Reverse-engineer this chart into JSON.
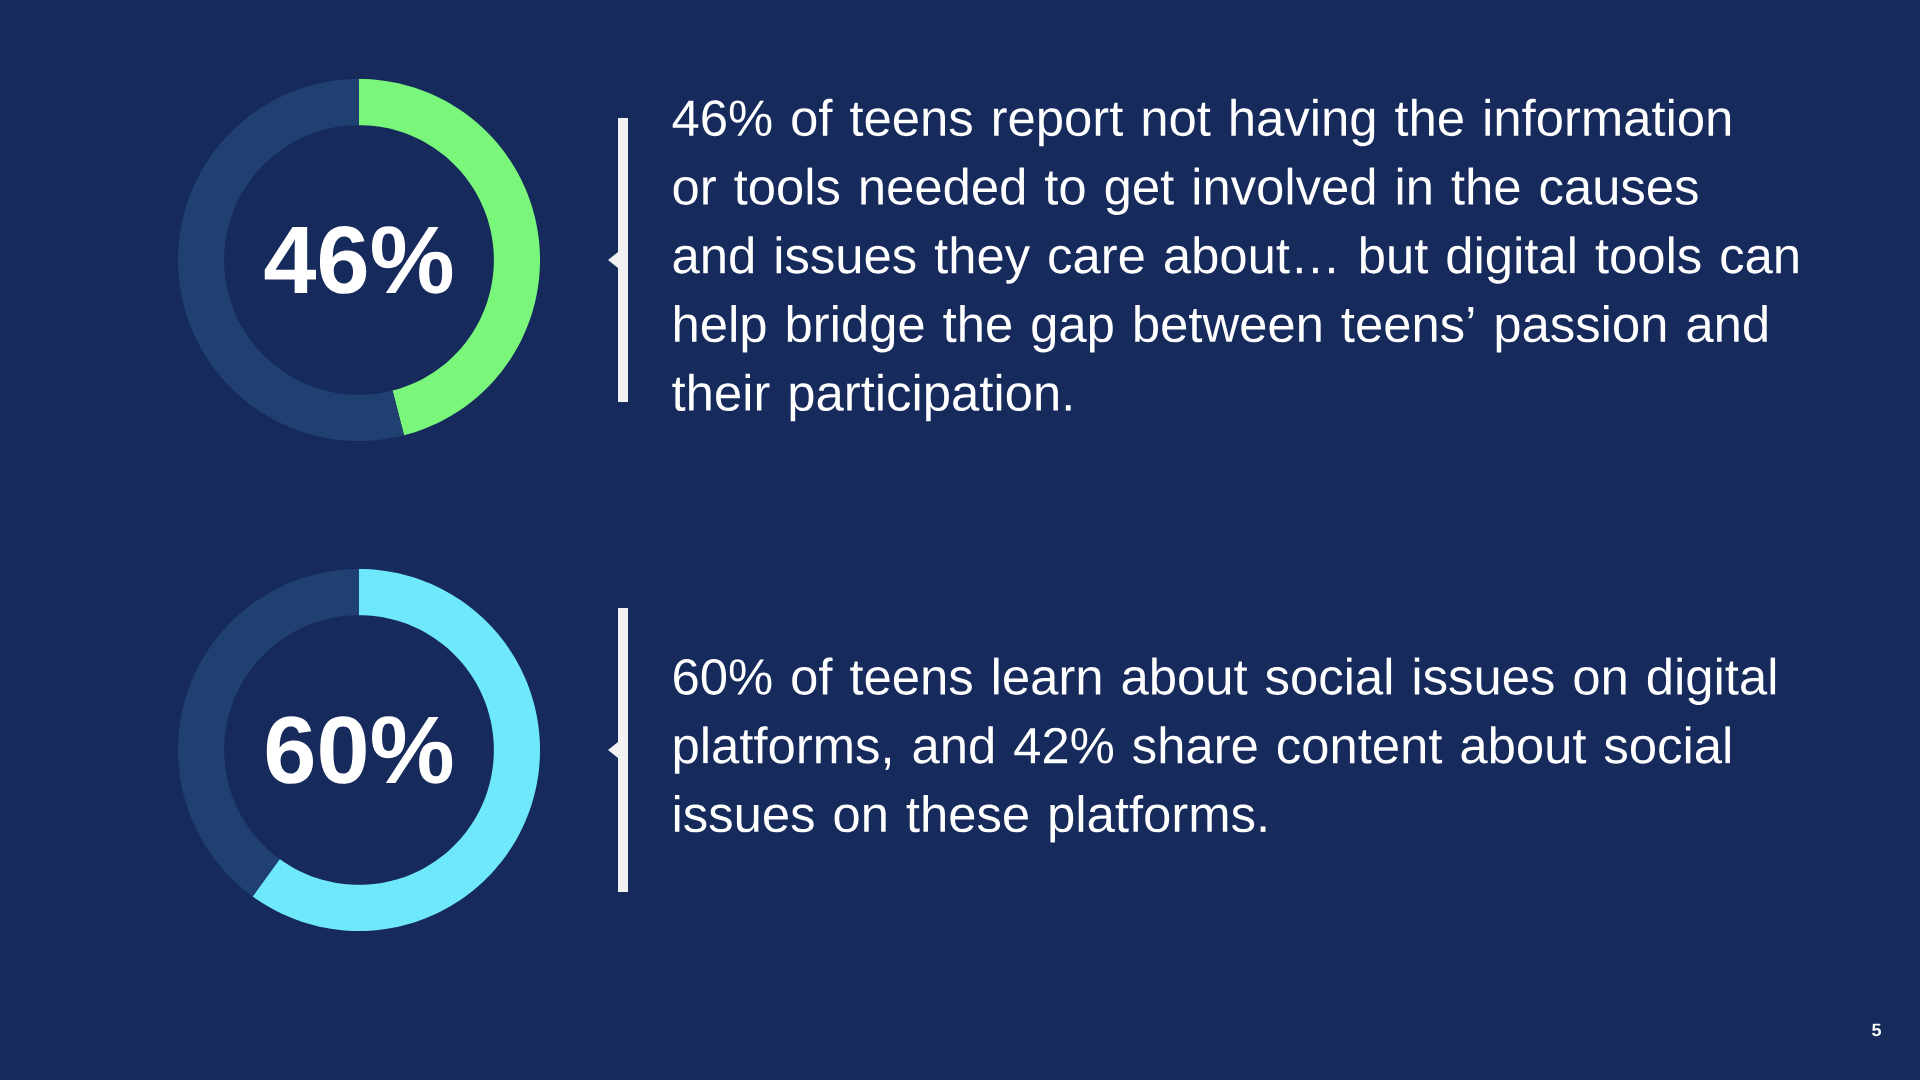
{
  "chart_data": [
    {
      "type": "donut",
      "categories": [
        null,
        null
      ],
      "values": [
        46,
        54
      ],
      "colors": [
        "#7af77a",
        "#1f4070"
      ],
      "title": "46%",
      "annotations": [
        "46% of teens report not having the information or tools needed to get involved in the causes and issues they care about… but digital tools can help bridge the gap between teens’ passion and their participation."
      ]
    },
    {
      "type": "donut",
      "categories": [
        null,
        null
      ],
      "values": [
        60,
        40
      ],
      "colors": [
        "#6ee8fa",
        "#1f4070"
      ],
      "title": "60%",
      "annotations": [
        "60% of teens learn about social issues on digital platforms, and 42% share content about social issues on these platforms.",
        "5"
      ]
    }
  ]
}
